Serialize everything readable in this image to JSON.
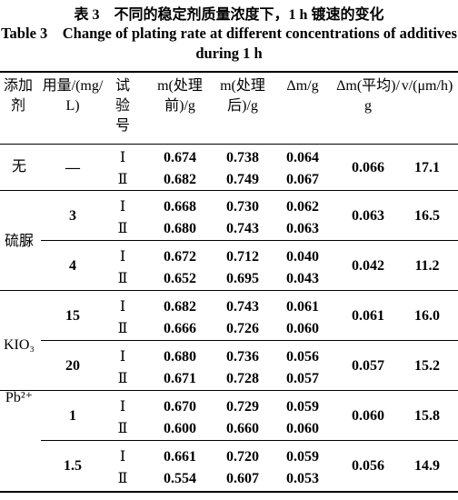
{
  "title_cn": "表 3　不同的稳定剂质量浓度下，1 h 镀速的变化",
  "title_en": "Table 3　Change of plating rate at different concentrations of additives during 1 h",
  "headers": [
    "添加剂",
    "用量/(mg/L)",
    "试验号",
    "m(处理前)/g",
    "m(处理后)/g",
    "Δm/g",
    "Δm(平均)/g",
    "v/(μm/h)"
  ],
  "groups": [
    {
      "additive": "无",
      "doses": [
        {
          "amount": "—",
          "avg": "0.066",
          "v": "17.1",
          "trials": [
            {
              "trial": "Ⅰ",
              "before": "0.674",
              "after": "0.738",
              "dm": "0.064"
            },
            {
              "trial": "Ⅱ",
              "before": "0.682",
              "after": "0.749",
              "dm": "0.067"
            }
          ]
        }
      ]
    },
    {
      "additive": "硫脲",
      "doses": [
        {
          "amount": "3",
          "avg": "0.063",
          "v": "16.5",
          "trials": [
            {
              "trial": "Ⅰ",
              "before": "0.668",
              "after": "0.730",
              "dm": "0.062"
            },
            {
              "trial": "Ⅱ",
              "before": "0.680",
              "after": "0.743",
              "dm": "0.063"
            }
          ]
        },
        {
          "amount": "4",
          "avg": "0.042",
          "v": "11.2",
          "trials": [
            {
              "trial": "Ⅰ",
              "before": "0.672",
              "after": "0.712",
              "dm": "0.040"
            },
            {
              "trial": "Ⅱ",
              "before": "0.652",
              "after": "0.695",
              "dm": "0.043"
            }
          ]
        }
      ]
    },
    {
      "additive": "KIO₃",
      "doses": [
        {
          "amount": "15",
          "avg": "0.061",
          "v": "16.0",
          "trials": [
            {
              "trial": "Ⅰ",
              "before": "0.682",
              "after": "0.743",
              "dm": "0.061"
            },
            {
              "trial": "Ⅱ",
              "before": "0.666",
              "after": "0.726",
              "dm": "0.060"
            }
          ]
        },
        {
          "amount": "20",
          "avg": "0.057",
          "v": "15.2",
          "trials": [
            {
              "trial": "Ⅰ",
              "before": "0.680",
              "after": "0.736",
              "dm": "0.056"
            },
            {
              "trial": "Ⅱ",
              "before": "0.671",
              "after": "0.728",
              "dm": "0.057"
            }
          ]
        }
      ]
    },
    {
      "additive": "Pb²⁺",
      "doses": [
        {
          "amount": "1",
          "avg": "0.060",
          "v": "15.8",
          "trials": [
            {
              "trial": "Ⅰ",
              "before": "0.670",
              "after": "0.729",
              "dm": "0.059"
            },
            {
              "trial": "Ⅱ",
              "before": "0.600",
              "after": "0.660",
              "dm": "0.060"
            }
          ]
        },
        {
          "amount": "1.5",
          "avg": "0.056",
          "v": "14.9",
          "trials": [
            {
              "trial": "Ⅰ",
              "before": "0.661",
              "after": "0.720",
              "dm": "0.059"
            },
            {
              "trial": "Ⅱ",
              "before": "0.554",
              "after": "0.607",
              "dm": "0.053"
            }
          ]
        }
      ]
    }
  ]
}
